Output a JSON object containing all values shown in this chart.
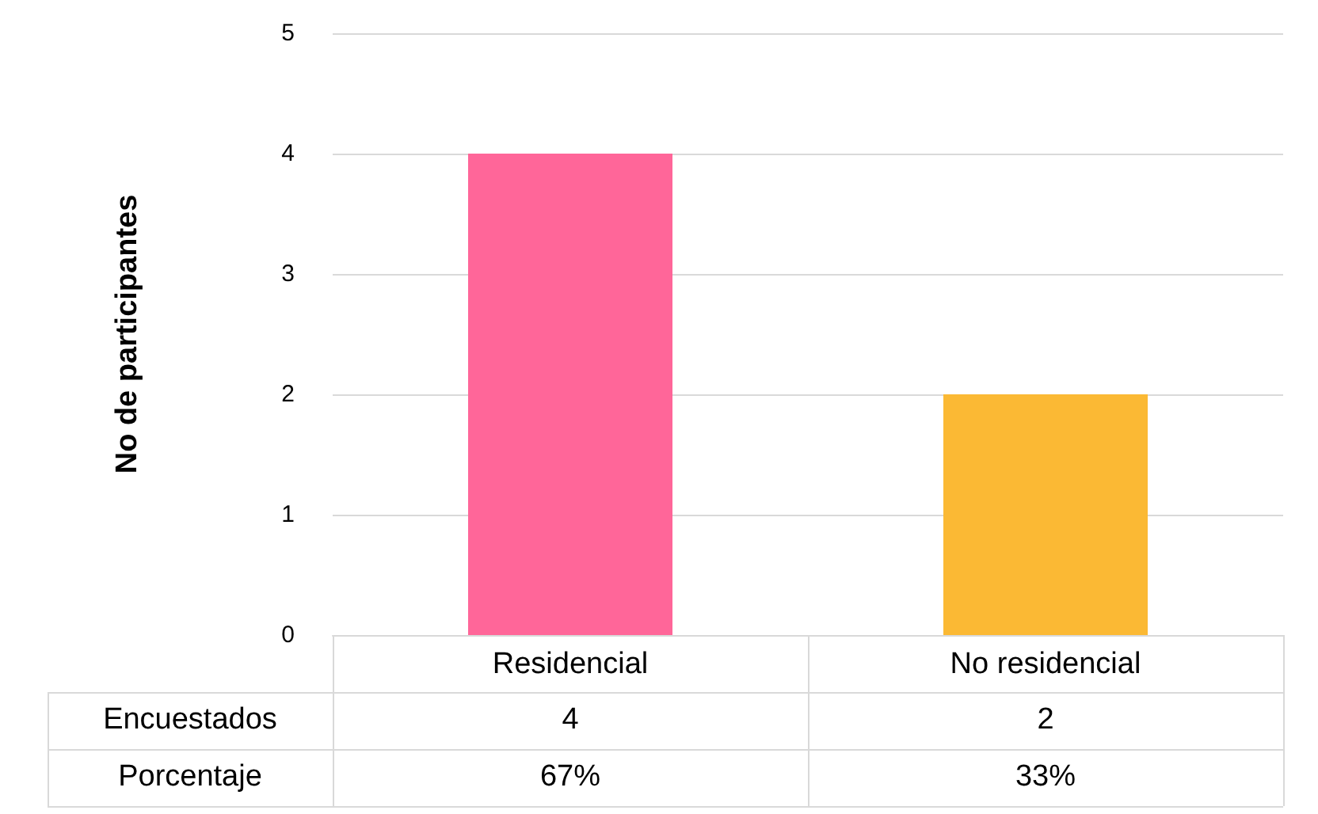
{
  "chart_data": {
    "type": "bar",
    "ylabel": "No de participantes",
    "categories": [
      "Residencial",
      "No residencial"
    ],
    "series": [
      {
        "name": "Encuestados",
        "colors": [
          "#ff6699",
          "#fbb934"
        ],
        "values": [
          4,
          2
        ]
      }
    ],
    "ylim": [
      0,
      5
    ],
    "yticks": [
      0,
      1,
      2,
      3,
      4,
      5
    ],
    "grid": "y",
    "legend": false,
    "data_labels": true,
    "annotations": [
      "Porcentaje",
      "67%",
      "33%"
    ]
  }
}
